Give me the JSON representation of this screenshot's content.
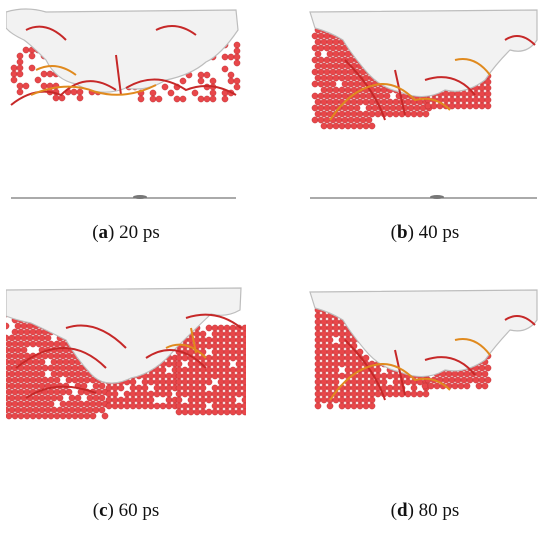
{
  "panels": [
    {
      "letter": "a",
      "time": "20 ps"
    },
    {
      "letter": "b",
      "time": "40 ps"
    },
    {
      "letter": "c",
      "time": "60 ps"
    },
    {
      "letter": "d",
      "time": "80 ps"
    }
  ],
  "colors": {
    "void_surface": "#f2f2f2",
    "void_shadow": "#bdbdbd",
    "atoms": "#e8474a",
    "atom_outline": "#b32a2e",
    "dislocation_red": "#c62828",
    "dislocation_orange": "#e08a1e",
    "baseline": "#777777"
  }
}
